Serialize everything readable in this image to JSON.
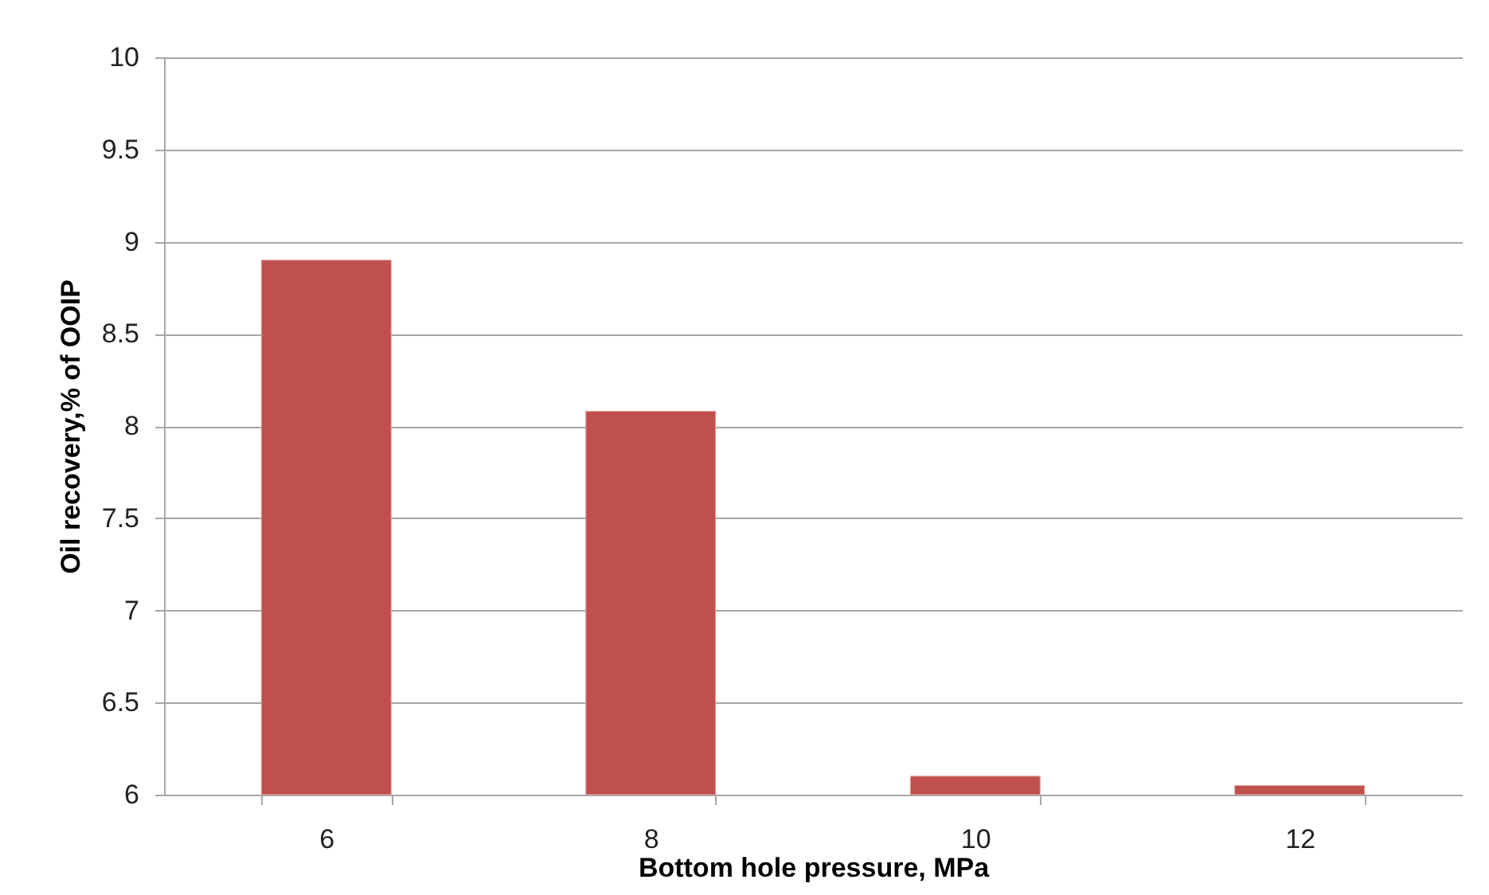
{
  "chart_data": {
    "type": "bar",
    "xlabel": "Bottom hole pressure, MPa",
    "ylabel": "Oil recovery,% of OOIP",
    "categories": [
      "6",
      "8",
      "10",
      "12"
    ],
    "values": [
      8.9,
      8.08,
      6.1,
      6.05
    ],
    "color": "#c0504d",
    "ylim": [
      6,
      10
    ],
    "yticks": [
      6,
      6.5,
      7,
      7.5,
      8,
      8.5,
      9,
      9.5,
      10
    ],
    "grid": "y"
  }
}
